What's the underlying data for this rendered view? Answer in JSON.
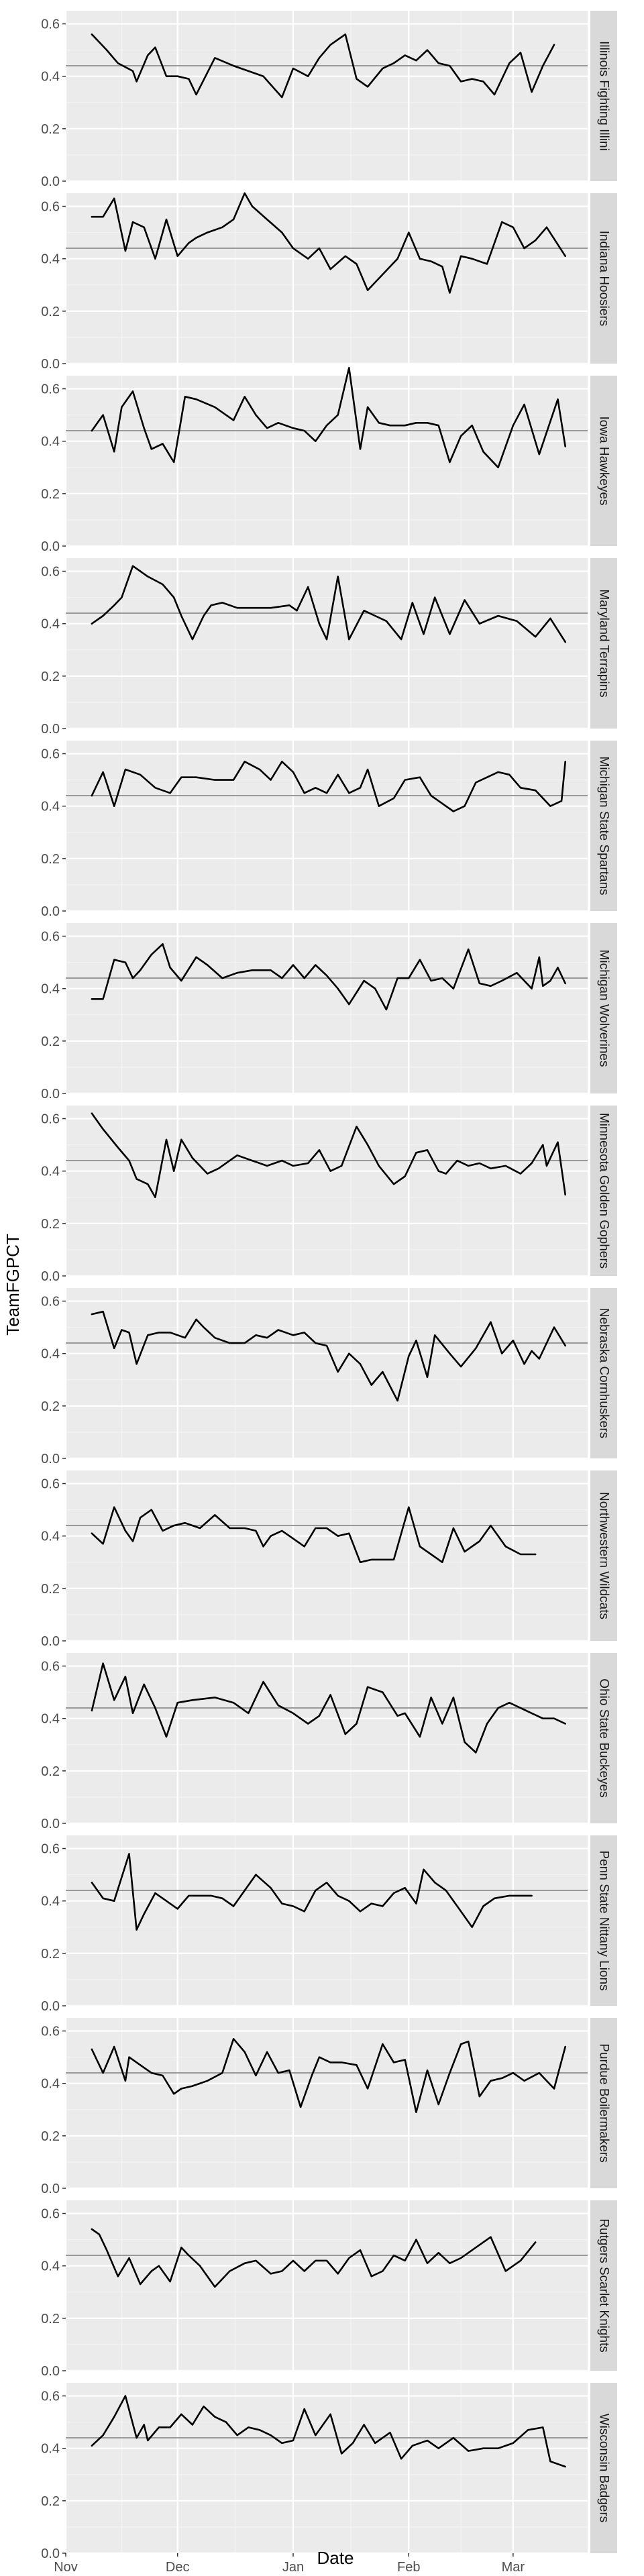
{
  "chart_data": {
    "type": "line",
    "ylabel": "TeamFGPCT",
    "xlabel": "Date",
    "ylim": [
      0,
      0.65
    ],
    "yticks": [
      0.0,
      0.2,
      0.4,
      0.6
    ],
    "ytick_labels": [
      "0.0",
      "0.2",
      "0.4",
      "0.6"
    ],
    "xlim": [
      0,
      140
    ],
    "xticks": [
      0,
      30,
      61,
      92,
      120
    ],
    "xtick_labels": [
      "Nov",
      "Dec",
      "Jan",
      "Feb",
      "Mar"
    ],
    "reference_line": 0.44,
    "grid": true,
    "colors": {
      "line": "#000000",
      "reference": "#999999",
      "panel": "#ebebeb",
      "strip": "#d9d9d9"
    },
    "panels": [
      {
        "name": "Illinois Fighting Illini",
        "x": [
          7,
          11,
          14,
          18,
          19,
          22,
          24,
          27,
          30,
          33,
          35,
          40,
          45,
          49,
          53,
          58,
          61,
          65,
          68,
          71,
          75,
          78,
          81,
          85,
          88,
          91,
          94,
          97,
          100,
          103,
          106,
          109,
          112,
          115,
          119,
          122,
          125,
          128,
          131
        ],
        "y": [
          0.56,
          0.5,
          0.45,
          0.42,
          0.38,
          0.48,
          0.51,
          0.4,
          0.4,
          0.39,
          0.33,
          0.47,
          0.44,
          0.42,
          0.4,
          0.32,
          0.43,
          0.4,
          0.47,
          0.52,
          0.56,
          0.39,
          0.36,
          0.43,
          0.45,
          0.48,
          0.46,
          0.5,
          0.45,
          0.44,
          0.38,
          0.39,
          0.38,
          0.33,
          0.45,
          0.49,
          0.34,
          0.44,
          0.52
        ]
      },
      {
        "name": "Indiana Hoosiers",
        "x": [
          7,
          10,
          13,
          16,
          18,
          21,
          24,
          27,
          30,
          33,
          35,
          38,
          42,
          45,
          48,
          50,
          54,
          58,
          61,
          65,
          68,
          71,
          75,
          78,
          81,
          85,
          89,
          92,
          95,
          98,
          101,
          103,
          106,
          109,
          113,
          117,
          120,
          123,
          126,
          129,
          134
        ],
        "y": [
          0.56,
          0.56,
          0.63,
          0.43,
          0.54,
          0.52,
          0.4,
          0.55,
          0.41,
          0.46,
          0.48,
          0.5,
          0.52,
          0.55,
          0.65,
          0.6,
          0.55,
          0.5,
          0.44,
          0.4,
          0.44,
          0.36,
          0.41,
          0.38,
          0.28,
          0.34,
          0.4,
          0.5,
          0.4,
          0.39,
          0.37,
          0.27,
          0.41,
          0.4,
          0.38,
          0.54,
          0.52,
          0.44,
          0.47,
          0.52,
          0.41
        ]
      },
      {
        "name": "Iowa Hawkeyes",
        "x": [
          7,
          10,
          13,
          15,
          18,
          21,
          23,
          26,
          29,
          32,
          35,
          40,
          45,
          48,
          51,
          54,
          57,
          61,
          64,
          67,
          70,
          73,
          76,
          79,
          81,
          84,
          87,
          91,
          94,
          97,
          100,
          103,
          106,
          109,
          112,
          116,
          120,
          123,
          127,
          132,
          134
        ],
        "y": [
          0.44,
          0.5,
          0.36,
          0.53,
          0.59,
          0.45,
          0.37,
          0.39,
          0.32,
          0.57,
          0.56,
          0.53,
          0.48,
          0.57,
          0.5,
          0.45,
          0.47,
          0.45,
          0.44,
          0.4,
          0.46,
          0.5,
          0.68,
          0.37,
          0.53,
          0.47,
          0.46,
          0.46,
          0.47,
          0.47,
          0.46,
          0.32,
          0.42,
          0.46,
          0.36,
          0.3,
          0.46,
          0.54,
          0.35,
          0.56,
          0.38
        ]
      },
      {
        "name": "Maryland Terrapins",
        "x": [
          7,
          10,
          13,
          15,
          18,
          22,
          26,
          29,
          31,
          34,
          37,
          39,
          42,
          46,
          50,
          55,
          60,
          62,
          65,
          68,
          70,
          73,
          76,
          80,
          83,
          86,
          90,
          93,
          96,
          99,
          103,
          107,
          111,
          116,
          121,
          126,
          130,
          134
        ],
        "y": [
          0.4,
          0.43,
          0.47,
          0.5,
          0.62,
          0.58,
          0.55,
          0.5,
          0.43,
          0.34,
          0.43,
          0.47,
          0.48,
          0.46,
          0.46,
          0.46,
          0.47,
          0.45,
          0.54,
          0.4,
          0.34,
          0.58,
          0.34,
          0.45,
          0.43,
          0.41,
          0.34,
          0.48,
          0.36,
          0.5,
          0.36,
          0.49,
          0.4,
          0.43,
          0.41,
          0.35,
          0.42,
          0.33
        ]
      },
      {
        "name": "Michigan State Spartans",
        "x": [
          7,
          10,
          13,
          16,
          20,
          24,
          28,
          31,
          35,
          40,
          45,
          48,
          52,
          55,
          58,
          61,
          64,
          67,
          70,
          73,
          76,
          79,
          81,
          84,
          88,
          91,
          95,
          98,
          101,
          104,
          107,
          110,
          113,
          116,
          119,
          122,
          126,
          130,
          133,
          134
        ],
        "y": [
          0.44,
          0.53,
          0.4,
          0.54,
          0.52,
          0.47,
          0.45,
          0.51,
          0.51,
          0.5,
          0.5,
          0.57,
          0.54,
          0.5,
          0.57,
          0.53,
          0.45,
          0.47,
          0.45,
          0.52,
          0.45,
          0.47,
          0.54,
          0.4,
          0.43,
          0.5,
          0.51,
          0.44,
          0.41,
          0.38,
          0.4,
          0.49,
          0.51,
          0.53,
          0.52,
          0.47,
          0.46,
          0.4,
          0.42,
          0.57
        ]
      },
      {
        "name": "Michigan Wolverines",
        "x": [
          7,
          10,
          13,
          16,
          18,
          20,
          23,
          26,
          28,
          31,
          35,
          38,
          42,
          46,
          50,
          55,
          58,
          61,
          64,
          67,
          70,
          73,
          76,
          80,
          83,
          86,
          89,
          92,
          95,
          98,
          101,
          104,
          108,
          111,
          114,
          117,
          121,
          125,
          127,
          128,
          130,
          132,
          134
        ],
        "y": [
          0.36,
          0.36,
          0.51,
          0.5,
          0.44,
          0.47,
          0.53,
          0.57,
          0.48,
          0.43,
          0.52,
          0.49,
          0.44,
          0.46,
          0.47,
          0.47,
          0.44,
          0.49,
          0.44,
          0.49,
          0.45,
          0.4,
          0.34,
          0.43,
          0.4,
          0.32,
          0.44,
          0.44,
          0.51,
          0.43,
          0.44,
          0.4,
          0.55,
          0.42,
          0.41,
          0.43,
          0.46,
          0.4,
          0.52,
          0.41,
          0.43,
          0.48,
          0.42
        ]
      },
      {
        "name": "Minnesota Golden Gophers",
        "x": [
          7,
          10,
          14,
          17,
          19,
          22,
          24,
          27,
          29,
          31,
          34,
          38,
          41,
          46,
          50,
          54,
          58,
          61,
          65,
          68,
          71,
          74,
          78,
          81,
          84,
          88,
          91,
          94,
          97,
          100,
          102,
          105,
          108,
          111,
          114,
          118,
          122,
          125,
          128,
          129,
          132,
          134
        ],
        "y": [
          0.62,
          0.56,
          0.49,
          0.44,
          0.37,
          0.35,
          0.3,
          0.52,
          0.4,
          0.52,
          0.45,
          0.39,
          0.41,
          0.46,
          0.44,
          0.42,
          0.44,
          0.42,
          0.43,
          0.48,
          0.4,
          0.42,
          0.57,
          0.5,
          0.42,
          0.35,
          0.38,
          0.47,
          0.48,
          0.4,
          0.39,
          0.44,
          0.42,
          0.43,
          0.41,
          0.42,
          0.39,
          0.43,
          0.5,
          0.42,
          0.51,
          0.31
        ]
      },
      {
        "name": "Nebraska Cornhuskers",
        "x": [
          7,
          10,
          13,
          15,
          17,
          19,
          22,
          25,
          28,
          32,
          35,
          37,
          40,
          44,
          48,
          51,
          54,
          57,
          61,
          64,
          67,
          70,
          73,
          76,
          79,
          82,
          85,
          89,
          92,
          94,
          97,
          99,
          103,
          106,
          110,
          114,
          117,
          120,
          123,
          125,
          127,
          131,
          134
        ],
        "y": [
          0.55,
          0.56,
          0.42,
          0.49,
          0.48,
          0.36,
          0.47,
          0.48,
          0.48,
          0.46,
          0.53,
          0.5,
          0.46,
          0.44,
          0.44,
          0.47,
          0.46,
          0.49,
          0.47,
          0.48,
          0.44,
          0.43,
          0.33,
          0.4,
          0.36,
          0.28,
          0.33,
          0.22,
          0.39,
          0.45,
          0.31,
          0.47,
          0.4,
          0.35,
          0.42,
          0.52,
          0.4,
          0.45,
          0.36,
          0.41,
          0.38,
          0.5,
          0.43
        ]
      },
      {
        "name": "Northwestern Wildcats",
        "x": [
          7,
          10,
          13,
          16,
          18,
          20,
          23,
          26,
          29,
          32,
          36,
          40,
          44,
          48,
          51,
          53,
          55,
          58,
          61,
          64,
          67,
          70,
          73,
          76,
          79,
          82,
          85,
          88,
          92,
          95,
          98,
          101,
          104,
          107,
          111,
          114,
          118,
          122,
          126
        ],
        "y": [
          0.41,
          0.37,
          0.51,
          0.42,
          0.38,
          0.47,
          0.5,
          0.42,
          0.44,
          0.45,
          0.43,
          0.48,
          0.43,
          0.43,
          0.42,
          0.36,
          0.4,
          0.42,
          0.39,
          0.36,
          0.43,
          0.43,
          0.4,
          0.41,
          0.3,
          0.31,
          0.31,
          0.31,
          0.51,
          0.36,
          0.33,
          0.3,
          0.43,
          0.34,
          0.38,
          0.44,
          0.36,
          0.33,
          0.33
        ]
      },
      {
        "name": "Ohio State Buckeyes",
        "x": [
          7,
          10,
          13,
          16,
          18,
          21,
          24,
          27,
          30,
          34,
          40,
          45,
          49,
          53,
          57,
          61,
          65,
          68,
          71,
          75,
          78,
          81,
          85,
          89,
          91,
          95,
          98,
          101,
          104,
          107,
          110,
          113,
          116,
          119,
          122,
          125,
          128,
          131,
          134
        ],
        "y": [
          0.43,
          0.61,
          0.47,
          0.56,
          0.42,
          0.53,
          0.44,
          0.33,
          0.46,
          0.47,
          0.48,
          0.46,
          0.42,
          0.54,
          0.45,
          0.42,
          0.38,
          0.41,
          0.49,
          0.34,
          0.38,
          0.52,
          0.5,
          0.41,
          0.42,
          0.33,
          0.48,
          0.38,
          0.48,
          0.31,
          0.27,
          0.38,
          0.44,
          0.46,
          0.44,
          0.42,
          0.4,
          0.4,
          0.38
        ]
      },
      {
        "name": "Penn State Nittany Lions",
        "x": [
          7,
          10,
          13,
          17,
          19,
          21,
          24,
          27,
          30,
          33,
          36,
          39,
          42,
          45,
          48,
          51,
          55,
          58,
          61,
          64,
          67,
          70,
          73,
          76,
          79,
          82,
          85,
          88,
          91,
          94,
          96,
          99,
          102,
          106,
          109,
          112,
          115,
          119,
          122,
          125
        ],
        "y": [
          0.47,
          0.41,
          0.4,
          0.58,
          0.29,
          0.35,
          0.43,
          0.4,
          0.37,
          0.42,
          0.42,
          0.42,
          0.41,
          0.38,
          0.44,
          0.5,
          0.45,
          0.39,
          0.38,
          0.36,
          0.44,
          0.47,
          0.42,
          0.4,
          0.36,
          0.39,
          0.38,
          0.43,
          0.45,
          0.39,
          0.52,
          0.47,
          0.44,
          0.36,
          0.3,
          0.38,
          0.41,
          0.42,
          0.42,
          0.42
        ]
      },
      {
        "name": "Purdue Boilermakers",
        "x": [
          7,
          10,
          13,
          16,
          17,
          20,
          23,
          26,
          29,
          31,
          34,
          38,
          42,
          45,
          48,
          51,
          54,
          57,
          60,
          63,
          66,
          68,
          71,
          74,
          78,
          81,
          85,
          88,
          91,
          94,
          97,
          100,
          103,
          106,
          108,
          111,
          114,
          117,
          120,
          123,
          127,
          131,
          134
        ],
        "y": [
          0.53,
          0.44,
          0.54,
          0.41,
          0.5,
          0.47,
          0.44,
          0.43,
          0.36,
          0.38,
          0.39,
          0.41,
          0.44,
          0.57,
          0.52,
          0.43,
          0.52,
          0.44,
          0.45,
          0.31,
          0.43,
          0.5,
          0.48,
          0.48,
          0.47,
          0.38,
          0.55,
          0.48,
          0.49,
          0.29,
          0.45,
          0.32,
          0.44,
          0.55,
          0.56,
          0.35,
          0.41,
          0.42,
          0.44,
          0.41,
          0.44,
          0.38,
          0.54
        ]
      },
      {
        "name": "Rutgers Scarlet Knights",
        "x": [
          7,
          9,
          11,
          14,
          17,
          20,
          23,
          25,
          28,
          31,
          33,
          36,
          40,
          44,
          48,
          51,
          55,
          58,
          61,
          64,
          67,
          70,
          73,
          76,
          79,
          82,
          85,
          88,
          91,
          94,
          97,
          100,
          103,
          106,
          110,
          114,
          118,
          122,
          126
        ],
        "y": [
          0.54,
          0.52,
          0.46,
          0.36,
          0.43,
          0.33,
          0.38,
          0.4,
          0.34,
          0.47,
          0.44,
          0.4,
          0.32,
          0.38,
          0.41,
          0.42,
          0.37,
          0.38,
          0.42,
          0.38,
          0.42,
          0.42,
          0.37,
          0.43,
          0.46,
          0.36,
          0.38,
          0.44,
          0.42,
          0.5,
          0.41,
          0.45,
          0.41,
          0.43,
          0.47,
          0.51,
          0.38,
          0.42,
          0.49
        ]
      },
      {
        "name": "Wisconsin Badgers",
        "x": [
          7,
          10,
          13,
          16,
          19,
          21,
          22,
          25,
          28,
          31,
          34,
          37,
          40,
          43,
          46,
          49,
          52,
          55,
          58,
          61,
          64,
          67,
          71,
          74,
          77,
          80,
          83,
          87,
          90,
          93,
          97,
          100,
          104,
          108,
          112,
          116,
          120,
          124,
          128,
          130,
          134
        ],
        "y": [
          0.41,
          0.45,
          0.52,
          0.6,
          0.44,
          0.49,
          0.43,
          0.48,
          0.48,
          0.53,
          0.49,
          0.56,
          0.52,
          0.5,
          0.45,
          0.48,
          0.47,
          0.45,
          0.42,
          0.43,
          0.55,
          0.45,
          0.53,
          0.38,
          0.42,
          0.49,
          0.42,
          0.46,
          0.36,
          0.41,
          0.43,
          0.4,
          0.44,
          0.39,
          0.4,
          0.4,
          0.42,
          0.47,
          0.48,
          0.35,
          0.33
        ]
      }
    ]
  }
}
